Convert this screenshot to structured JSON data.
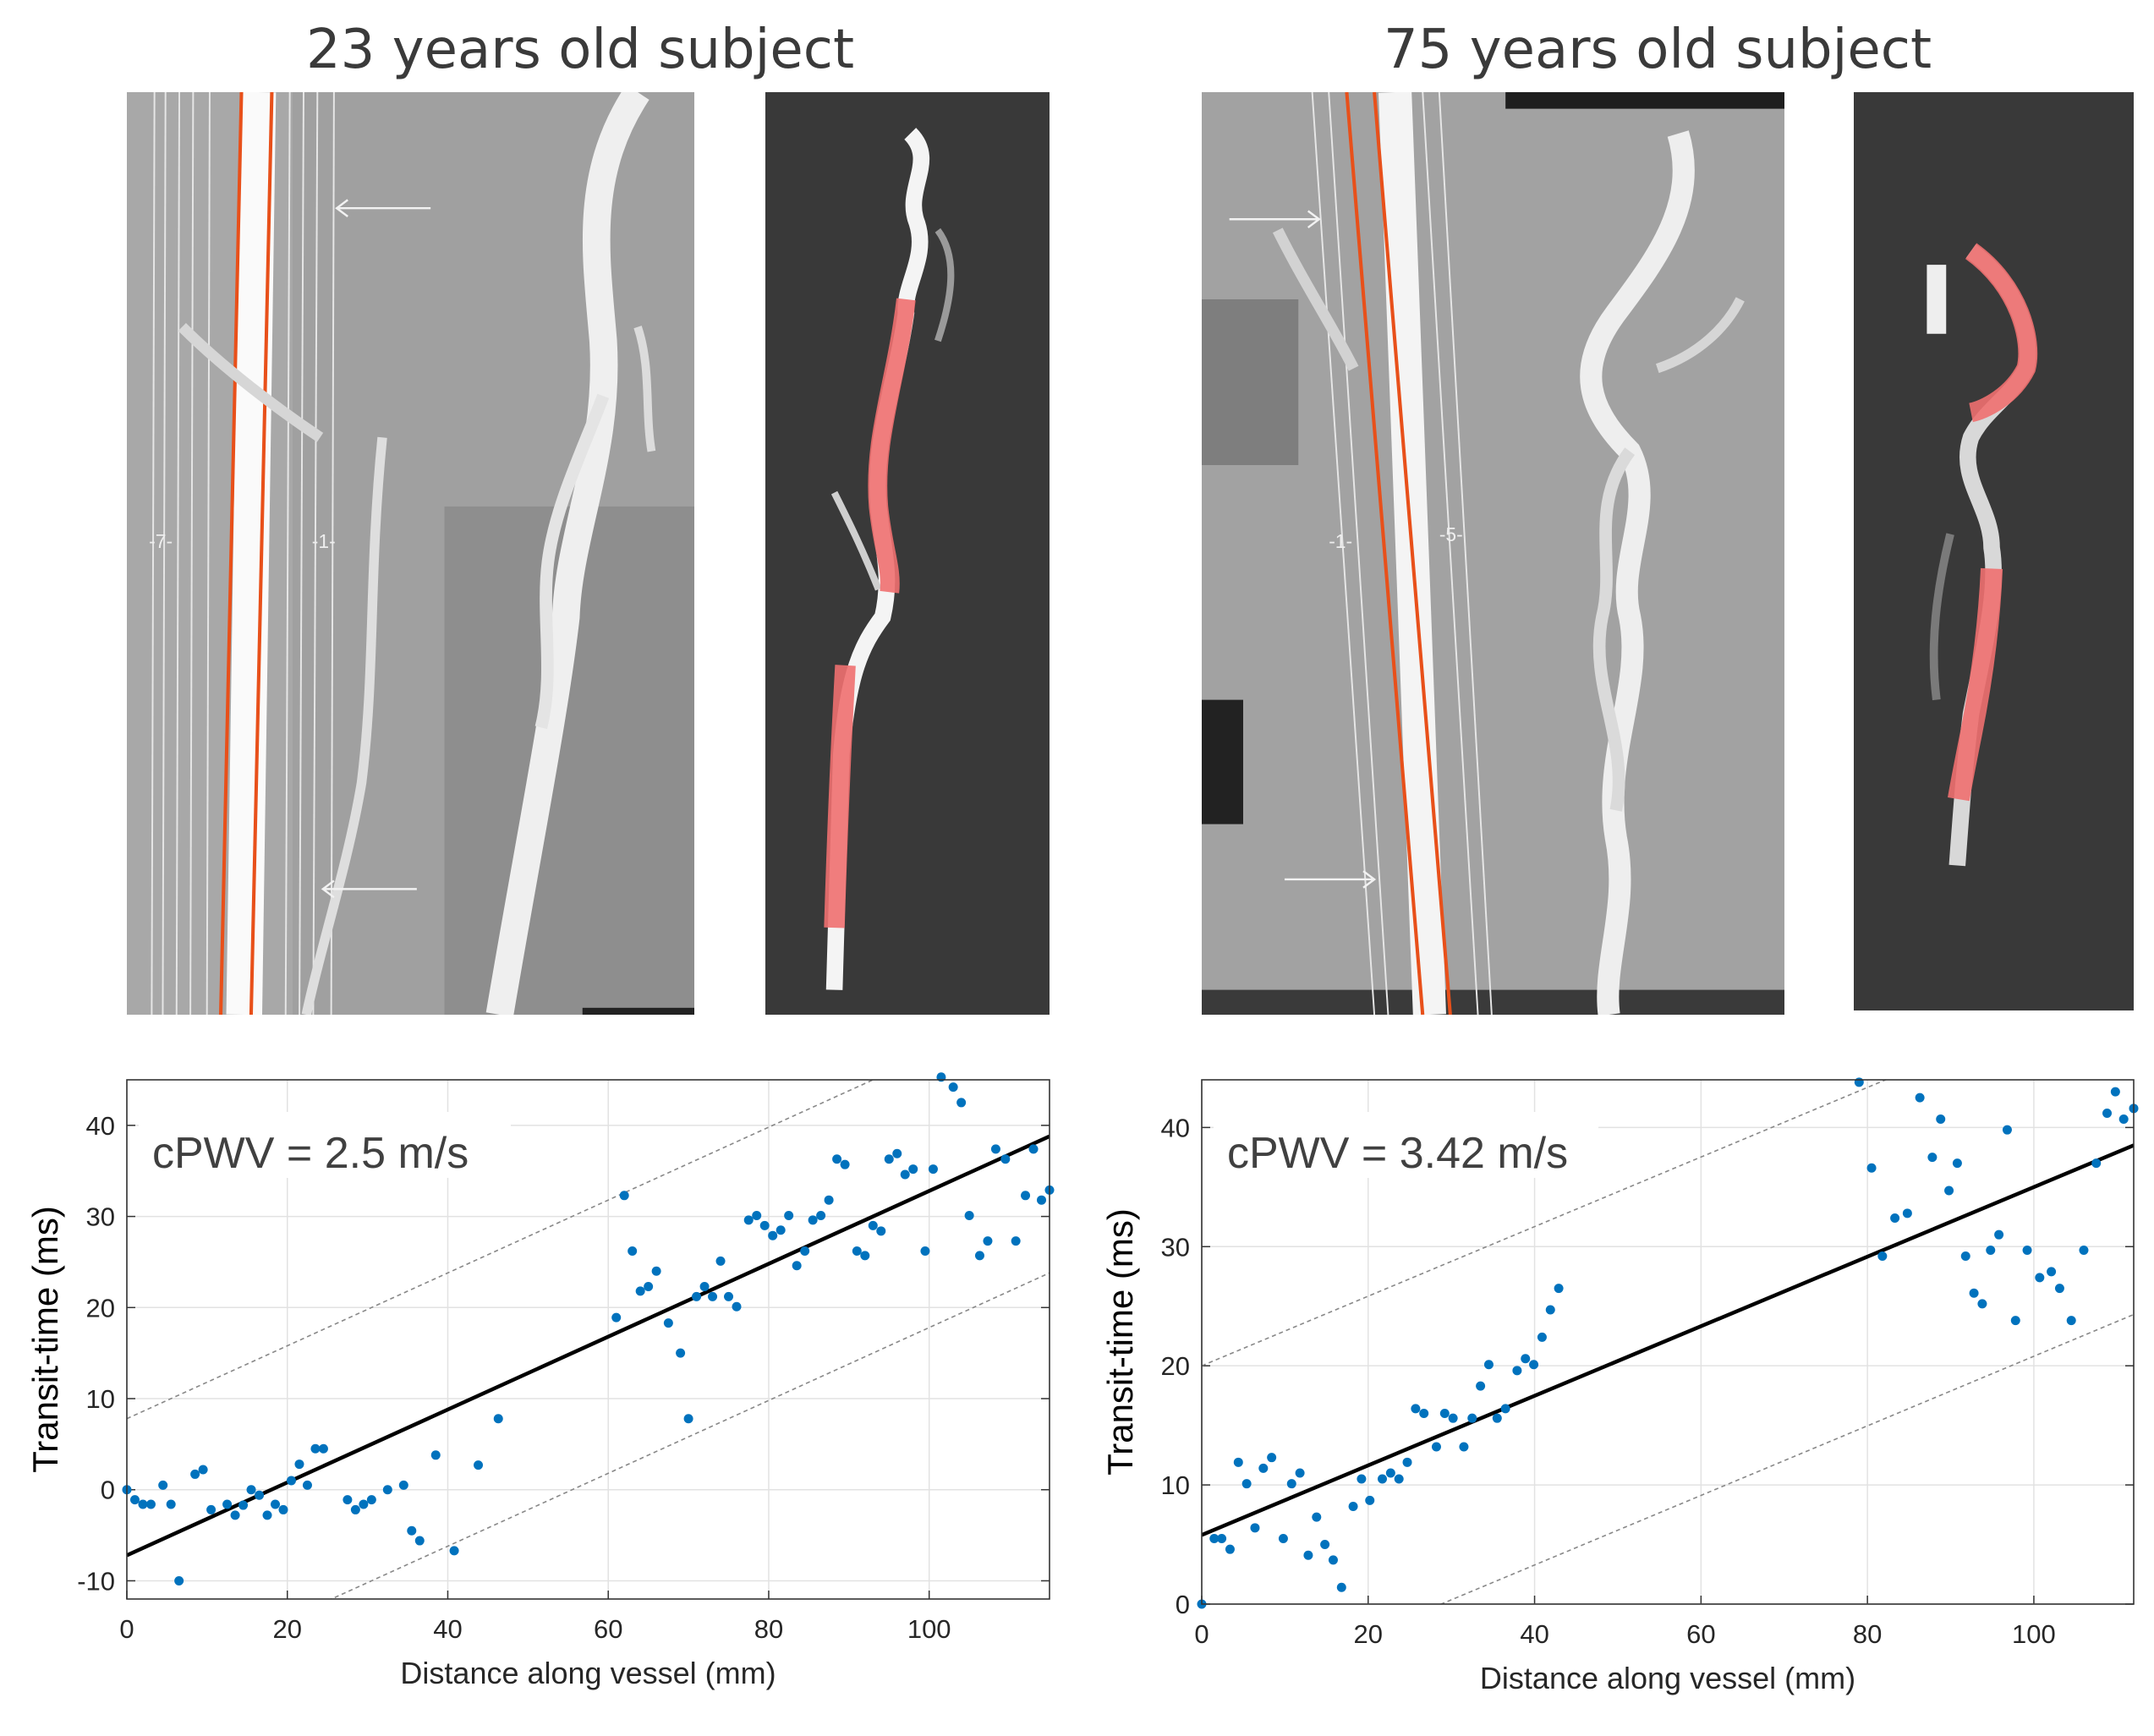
{
  "panels": {
    "left": {
      "title": "23 years old subject",
      "mri_labels": [
        "-7-",
        "-1-"
      ]
    },
    "right": {
      "title": "75 years old subject",
      "mri_labels": [
        "-1-",
        "-5-"
      ]
    }
  },
  "colors": {
    "points": "#0072bd",
    "fit": "#000000",
    "bounds": "#888888",
    "centerline": "#e8501a",
    "segment_overlay": "#f07070"
  },
  "chart_data": [
    {
      "type": "scatter",
      "annotation": "cPWV = 2.5 m/s",
      "xlabel": "Distance along vessel (mm)",
      "ylabel": "Transit-time (ms)",
      "xlim": [
        0,
        115
      ],
      "ylim": [
        -12,
        45
      ],
      "xticks": [
        0,
        20,
        40,
        60,
        80,
        100
      ],
      "yticks": [
        -10,
        0,
        10,
        20,
        30,
        40
      ],
      "grid": true,
      "fit": {
        "intercept": -7.2,
        "slope": 0.4,
        "band_offset": 15
      },
      "points": [
        [
          0,
          0
        ],
        [
          1,
          -1.1
        ],
        [
          2,
          -1.6
        ],
        [
          3,
          -1.6
        ],
        [
          4.5,
          0.5
        ],
        [
          5.5,
          -1.6
        ],
        [
          6.5,
          -10
        ],
        [
          8.5,
          1.7
        ],
        [
          9.5,
          2.2
        ],
        [
          10.5,
          -2.2
        ],
        [
          12.5,
          -1.6
        ],
        [
          13.5,
          -2.8
        ],
        [
          14.5,
          -1.7
        ],
        [
          15.5,
          0
        ],
        [
          16.5,
          -0.6
        ],
        [
          17.5,
          -2.8
        ],
        [
          18.5,
          -1.6
        ],
        [
          19.5,
          -2.2
        ],
        [
          20.5,
          1
        ],
        [
          21.5,
          2.8
        ],
        [
          22.5,
          0.5
        ],
        [
          23.5,
          4.5
        ],
        [
          24.5,
          4.5
        ],
        [
          27.5,
          -1.1
        ],
        [
          28.5,
          -2.2
        ],
        [
          29.5,
          -1.6
        ],
        [
          30.5,
          -1.1
        ],
        [
          32.5,
          0
        ],
        [
          34.5,
          0.5
        ],
        [
          35.5,
          -4.5
        ],
        [
          36.5,
          -5.6
        ],
        [
          38.5,
          3.8
        ],
        [
          40.8,
          -6.7
        ],
        [
          43.8,
          2.7
        ],
        [
          46.3,
          7.8
        ],
        [
          61,
          18.9
        ],
        [
          62,
          32.3
        ],
        [
          63,
          26.2
        ],
        [
          64,
          21.8
        ],
        [
          65,
          22.3
        ],
        [
          66,
          24
        ],
        [
          67.5,
          18.3
        ],
        [
          69,
          15
        ],
        [
          70,
          7.8
        ],
        [
          71,
          21.2
        ],
        [
          72,
          22.3
        ],
        [
          73,
          21.2
        ],
        [
          74,
          25.1
        ],
        [
          75,
          21.2
        ],
        [
          76,
          20.1
        ],
        [
          77.5,
          29.6
        ],
        [
          78.5,
          30.1
        ],
        [
          79.5,
          29
        ],
        [
          80.5,
          27.9
        ],
        [
          81.5,
          28.5
        ],
        [
          82.5,
          30.1
        ],
        [
          83.5,
          24.6
        ],
        [
          84.5,
          26.2
        ],
        [
          85.5,
          29.6
        ],
        [
          86.5,
          30.1
        ],
        [
          87.5,
          31.8
        ],
        [
          88.5,
          36.3
        ],
        [
          89.5,
          35.7
        ],
        [
          91,
          26.2
        ],
        [
          92,
          25.7
        ],
        [
          93,
          29
        ],
        [
          94,
          28.4
        ],
        [
          95,
          36.3
        ],
        [
          96,
          36.9
        ],
        [
          97,
          34.6
        ],
        [
          98,
          35.2
        ],
        [
          99.5,
          26.2
        ],
        [
          100.5,
          35.2
        ],
        [
          101.5,
          45.3
        ],
        [
          103,
          44.2
        ],
        [
          104,
          42.5
        ],
        [
          105,
          30.1
        ],
        [
          106.3,
          25.7
        ],
        [
          107.3,
          27.3
        ],
        [
          108.3,
          37.4
        ],
        [
          109.5,
          36.3
        ],
        [
          110.8,
          27.3
        ],
        [
          112,
          32.3
        ],
        [
          113,
          37.4
        ],
        [
          114,
          31.8
        ],
        [
          115,
          32.9
        ]
      ]
    },
    {
      "type": "scatter",
      "annotation": "cPWV = 3.42 m/s",
      "xlabel": "Distance along vessel (mm)",
      "ylabel": "Transit-time (ms)",
      "xlim": [
        0,
        112
      ],
      "ylim": [
        0,
        44
      ],
      "xticks": [
        0,
        20,
        40,
        60,
        80,
        100
      ],
      "yticks": [
        0,
        10,
        20,
        30,
        40
      ],
      "grid": true,
      "fit": {
        "intercept": 5.8,
        "slope": 0.292,
        "band_offset": 14.2
      },
      "points": [
        [
          0,
          0
        ],
        [
          1.5,
          5.5
        ],
        [
          2.4,
          5.5
        ],
        [
          3.4,
          4.6
        ],
        [
          4.4,
          11.9
        ],
        [
          5.4,
          10.1
        ],
        [
          6.4,
          6.4
        ],
        [
          7.4,
          11.4
        ],
        [
          8.4,
          12.3
        ],
        [
          9.8,
          5.5
        ],
        [
          10.8,
          10.1
        ],
        [
          11.8,
          11
        ],
        [
          12.8,
          4.1
        ],
        [
          13.8,
          7.3
        ],
        [
          14.8,
          5
        ],
        [
          15.8,
          3.7
        ],
        [
          16.8,
          1.4
        ],
        [
          18.2,
          8.2
        ],
        [
          19.2,
          10.5
        ],
        [
          20.2,
          8.7
        ],
        [
          21.7,
          10.5
        ],
        [
          22.7,
          11
        ],
        [
          23.7,
          10.5
        ],
        [
          24.7,
          11.9
        ],
        [
          25.7,
          16.4
        ],
        [
          26.7,
          16
        ],
        [
          28.2,
          13.2
        ],
        [
          29.2,
          16
        ],
        [
          30.2,
          15.6
        ],
        [
          31.5,
          13.2
        ],
        [
          32.5,
          15.6
        ],
        [
          33.5,
          18.3
        ],
        [
          34.5,
          20.1
        ],
        [
          35.5,
          15.6
        ],
        [
          36.5,
          16.4
        ],
        [
          37.9,
          19.6
        ],
        [
          38.9,
          20.6
        ],
        [
          39.9,
          20.1
        ],
        [
          40.9,
          22.4
        ],
        [
          41.9,
          24.7
        ],
        [
          42.9,
          26.5
        ],
        [
          79,
          43.8
        ],
        [
          80.5,
          36.6
        ],
        [
          81.8,
          29.2
        ],
        [
          83.3,
          32.4
        ],
        [
          84.8,
          32.8
        ],
        [
          86.3,
          42.5
        ],
        [
          87.8,
          37.5
        ],
        [
          88.8,
          40.7
        ],
        [
          89.8,
          34.7
        ],
        [
          90.8,
          37
        ],
        [
          91.8,
          29.2
        ],
        [
          92.8,
          26.1
        ],
        [
          93.8,
          25.2
        ],
        [
          94.8,
          29.7
        ],
        [
          95.8,
          31
        ],
        [
          96.8,
          39.8
        ],
        [
          97.8,
          23.8
        ],
        [
          99.2,
          29.7
        ],
        [
          100.7,
          27.4
        ],
        [
          102.1,
          27.9
        ],
        [
          103.1,
          26.5
        ],
        [
          104.5,
          23.8
        ],
        [
          106,
          29.7
        ],
        [
          107.5,
          37
        ],
        [
          108.8,
          41.2
        ],
        [
          109.8,
          43
        ],
        [
          110.8,
          40.7
        ],
        [
          112,
          41.6
        ]
      ]
    }
  ]
}
